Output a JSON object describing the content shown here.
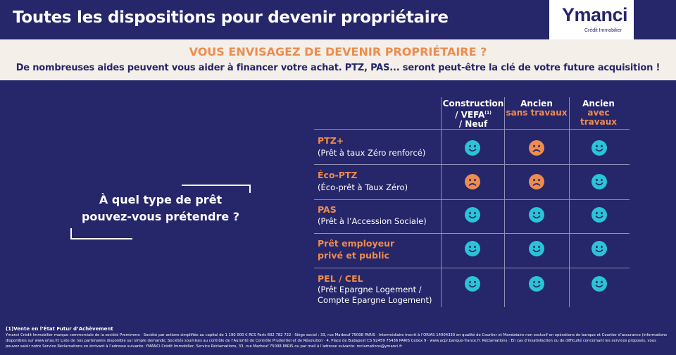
{
  "header": {
    "title": "Toutes les dispositions pour devenir propriétaire"
  },
  "logo": {
    "name": "Ymanci",
    "tagline": "Crédit Immobilier"
  },
  "band": {
    "title": "VOUS ENVISAGEZ DE DEVENIR PROPRIÉTAIRE ?",
    "subtitle": "De nombreuses aides peuvent vous aider à financer votre achat. PTZ, PAS... seront peut-être la clé de votre future acquisition !"
  },
  "question": {
    "line1": "À quel type de prêt",
    "line2": "pouvez-vous prétendre ?"
  },
  "columns": [
    {
      "line1": "Construction",
      "line2": "/ VEFA",
      "sup": "(1)",
      "line3": "/ Neuf"
    },
    {
      "line1": "Ancien",
      "line2": "sans travaux"
    },
    {
      "line1": "Ancien",
      "line2": "avec travaux"
    }
  ],
  "rows": [
    {
      "name": "PTZ+",
      "desc": "(Prêt à taux Zéro renforcé)",
      "faces": [
        "happy",
        "sad",
        "happy"
      ]
    },
    {
      "name": "Éco-PTZ",
      "desc": "(Éco-prêt à Taux Zéro)",
      "faces": [
        "sad",
        "sad",
        "happy"
      ]
    },
    {
      "name": "PAS",
      "desc": "(Prêt à l’Accession Sociale)",
      "faces": [
        "happy",
        "happy",
        "happy"
      ]
    },
    {
      "name": "Prêt employeur",
      "name2": "privé et public",
      "faces": [
        "happy",
        "happy",
        "happy"
      ]
    },
    {
      "name": "PEL / CEL",
      "desc": "(Prêt Epargne Logement /",
      "desc2": "Compte Epargne Logement)",
      "faces": [
        "happy",
        "happy",
        "happy"
      ]
    }
  ],
  "colors": {
    "background": "#26266a",
    "accent": "#ee8c4e",
    "happy": "#2bc4d6",
    "sad": "#ee8c4e",
    "band": "#f4efe9"
  },
  "footnote": {
    "title": "(1)Vente en l’État Futur d’Achèvement",
    "text": "Ymanci Crédit Immobilier marque commerciale de la société Premimmo · Société par actions simplifiée au capital de 1 190 000 € RCS Paris 802 782 722 · Siège social : 33, rue Marbeuf 75008 PARIS · Intermédiaire inscrit à l’ORIAS 14004330 en qualité de Courtier et Mandataire non exclusif en opérations de banque et Courtier d’assurance (informations disponibles sur www.orias.fr) Liste de nos partenaires disponible sur simple demande; Sociétés soumises au contrôle de l’Autorité de Contrôle Prudentiel et de Résolution · 4, Place de Budapest CS 92459 75436 PARIS Cedex 9 · www.acpr.banque-france.fr. Réclamations : En cas d’insatisfaction ou de difficulté concernant les services proposés, vous pouvez saisir notre Service Réclamations en écrivant à l’adresse suivante: YMANCI Crédit Immobilier, Service Réclamations, 33, rue Marbeuf 75008 PARIS ou par mail à l’adresse suivante: reclamations@ymanci.fr"
  }
}
